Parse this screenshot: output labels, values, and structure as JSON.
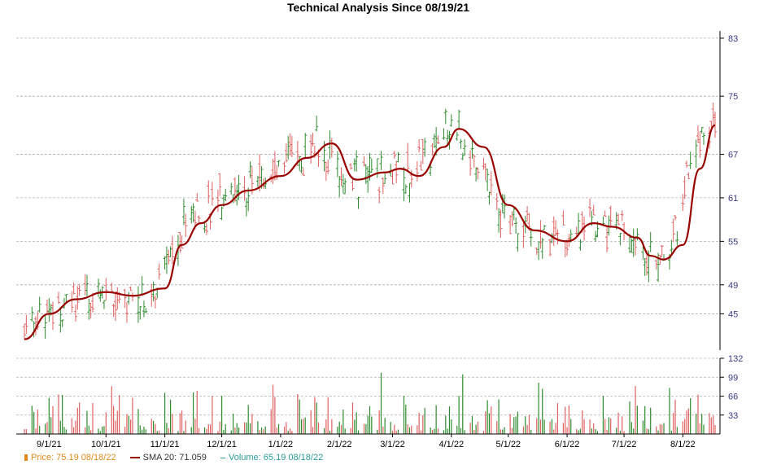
{
  "chart_data": {
    "type": "candlestick",
    "title": "Technical Analysis Since 08/19/21",
    "price_axis": {
      "ylim": [
        40,
        84
      ],
      "ticks": [
        83,
        75,
        67,
        61,
        55,
        49,
        45
      ]
    },
    "volume_axis": {
      "ylim": [
        0,
        132
      ],
      "ticks": [
        132,
        99,
        66,
        33
      ]
    },
    "x_ticks": [
      "9/1/21",
      "10/1/21",
      "11/1/21",
      "12/1/21",
      "1/1/22",
      "2/1/22",
      "3/1/22",
      "4/1/22",
      "5/1/22",
      "6/1/22",
      "7/1/22",
      "8/1/22"
    ],
    "series": [
      {
        "name": "Price",
        "type": "ohlc",
        "last_value": 75.19,
        "last_date": "08/18/22"
      },
      {
        "name": "SMA 20",
        "type": "line",
        "last_value": 71.059
      },
      {
        "name": "Volume",
        "type": "bar",
        "last_value": 65.19,
        "last_date": "08/18/22"
      }
    ],
    "sma20_points": [
      [
        "08/19/21",
        41.5
      ],
      [
        "09/01/21",
        45.0
      ],
      [
        "09/15/21",
        47.0
      ],
      [
        "10/01/21",
        48.0
      ],
      [
        "10/15/21",
        47.5
      ],
      [
        "11/01/21",
        48.5
      ],
      [
        "11/10/21",
        54.5
      ],
      [
        "11/20/21",
        57.5
      ],
      [
        "12/01/21",
        60.0
      ],
      [
        "12/15/21",
        62.0
      ],
      [
        "01/01/22",
        64.0
      ],
      [
        "01/15/22",
        66.5
      ],
      [
        "01/28/22",
        68.5
      ],
      [
        "02/10/22",
        63.5
      ],
      [
        "02/25/22",
        64.5
      ],
      [
        "03/05/22",
        65.0
      ],
      [
        "03/15/22",
        64.0
      ],
      [
        "03/28/22",
        68.0
      ],
      [
        "04/05/22",
        70.5
      ],
      [
        "04/18/22",
        68.0
      ],
      [
        "05/01/22",
        60.0
      ],
      [
        "05/15/22",
        56.5
      ],
      [
        "06/01/22",
        55.0
      ],
      [
        "06/15/22",
        57.5
      ],
      [
        "06/25/22",
        57.0
      ],
      [
        "07/08/22",
        55.5
      ],
      [
        "07/15/22",
        53.0
      ],
      [
        "07/22/22",
        52.5
      ],
      [
        "08/01/22",
        54.5
      ],
      [
        "08/10/22",
        65.0
      ],
      [
        "08/18/22",
        71.0
      ]
    ],
    "legend": {
      "price": "Price: 75.19  08/18/22",
      "sma": "SMA 20: 71.059",
      "volume": "Volume: 65.19  08/18/22"
    },
    "colors": {
      "up": "#2e8b2e",
      "down": "#e06060",
      "sma": "#990000",
      "grid": "#b0b0b0",
      "axis_text": "#3a3a8a"
    },
    "grid": true
  }
}
